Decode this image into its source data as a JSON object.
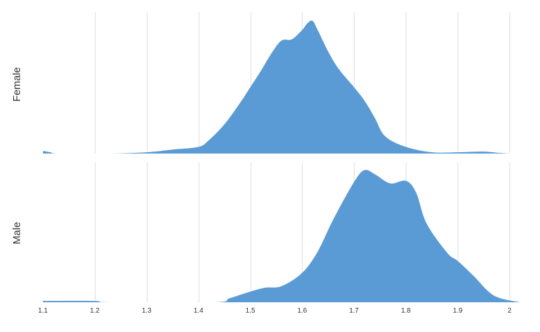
{
  "chart_data": {
    "type": "area",
    "orientation": "ridgeline",
    "grid": true,
    "x_ticks": [
      1.1,
      1.2,
      1.3,
      1.4,
      1.5,
      1.6,
      1.7,
      1.8,
      1.9,
      2
    ],
    "x_tick_labels": [
      "1.1",
      "1.2",
      "1.3",
      "1.4",
      "1.5",
      "1.6",
      "1.7",
      "1.8",
      "1.9",
      "2"
    ],
    "xlim": [
      1.1,
      2.0
    ],
    "fill_color": "#5b9bd5",
    "series": [
      {
        "name": "Female",
        "x": [
          1.1,
          1.115,
          1.13,
          1.23,
          1.3,
          1.35,
          1.4,
          1.42,
          1.45,
          1.48,
          1.5,
          1.52,
          1.54,
          1.56,
          1.58,
          1.6,
          1.61,
          1.62,
          1.63,
          1.65,
          1.67,
          1.7,
          1.72,
          1.74,
          1.76,
          1.8,
          1.85,
          1.9,
          1.95,
          1.98,
          2.0
        ],
        "y": [
          0.02,
          0.01,
          0.0,
          0.0,
          0.01,
          0.03,
          0.05,
          0.1,
          0.22,
          0.38,
          0.5,
          0.62,
          0.75,
          0.85,
          0.86,
          0.93,
          0.98,
          1.0,
          0.93,
          0.77,
          0.64,
          0.5,
          0.4,
          0.27,
          0.13,
          0.05,
          0.01,
          0.01,
          0.015,
          0.005,
          0.0
        ]
      },
      {
        "name": "Male",
        "x": [
          1.1,
          1.2,
          1.23,
          1.43,
          1.46,
          1.5,
          1.53,
          1.56,
          1.6,
          1.63,
          1.66,
          1.7,
          1.72,
          1.74,
          1.77,
          1.8,
          1.82,
          1.84,
          1.88,
          1.9,
          1.93,
          1.97,
          2.02
        ],
        "y": [
          0.01,
          0.01,
          0.0,
          0.0,
          0.03,
          0.08,
          0.11,
          0.12,
          0.22,
          0.38,
          0.62,
          0.9,
          0.99,
          0.96,
          0.89,
          0.91,
          0.82,
          0.59,
          0.37,
          0.31,
          0.2,
          0.05,
          0.0
        ]
      }
    ]
  }
}
